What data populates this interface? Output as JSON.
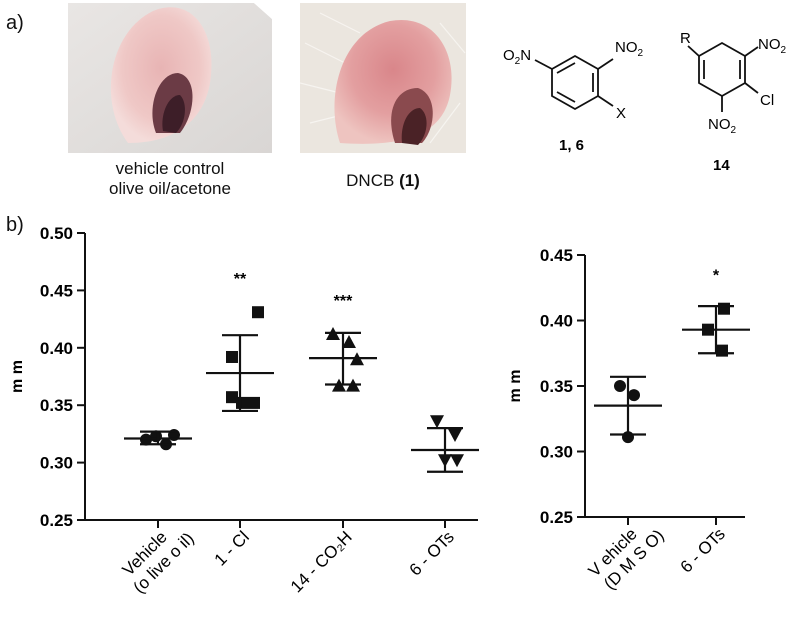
{
  "panel_a": {
    "label": "a)",
    "photo1": {
      "caption_line1": "vehicle control",
      "caption_line2": "olive oil/acetone"
    },
    "photo2": {
      "caption_text": "DNCB ",
      "caption_bold": "(1)"
    },
    "struct1": {
      "label": "1, 6",
      "sub_left": "O2N",
      "sub_right": "NO2",
      "sub_bottom": "X"
    },
    "struct2": {
      "label": "14",
      "sub_r": "R",
      "sub_top": "NO2",
      "sub_cl": "Cl",
      "sub_bottom": "NO2"
    }
  },
  "panel_b": {
    "label": "b)"
  },
  "chart_data": [
    {
      "type": "scatter",
      "ylabel": "m m",
      "ylim": [
        0.25,
        0.5
      ],
      "yticks": [
        "0.25",
        "0.30",
        "0.35",
        "0.40",
        "0.45",
        "0.50"
      ],
      "categories": [
        "Vehicle (olive oil)",
        "1 - Cl",
        "14 - CO2H",
        "6 - OTs"
      ],
      "tick_labels": [
        {
          "line1": "Vehicle",
          "line2": "(o live o il)"
        },
        {
          "line1": "1 - Cl",
          "line2": ""
        },
        {
          "line1": "14 - CO₂H",
          "line2": ""
        },
        {
          "line1": "6 - OTs",
          "line2": ""
        }
      ],
      "series": [
        {
          "marker": "circle",
          "points": [
            0.32,
            0.323,
            0.316,
            0.324
          ],
          "mean": 0.321,
          "sd_low": 0.316,
          "sd_high": 0.327,
          "significance": ""
        },
        {
          "marker": "square",
          "points": [
            0.392,
            0.431,
            0.357,
            0.352,
            0.352
          ],
          "mean": 0.378,
          "sd_low": 0.345,
          "sd_high": 0.411,
          "significance": "**"
        },
        {
          "marker": "triangle-up",
          "points": [
            0.412,
            0.405,
            0.39,
            0.367,
            0.367
          ],
          "mean": 0.391,
          "sd_low": 0.368,
          "sd_high": 0.413,
          "significance": "***"
        },
        {
          "marker": "triangle-down",
          "points": [
            0.336,
            0.324,
            0.302,
            0.302
          ],
          "mean": 0.311,
          "sd_low": 0.292,
          "sd_high": 0.33,
          "significance": ""
        }
      ]
    },
    {
      "type": "scatter",
      "ylabel": "m m",
      "ylim": [
        0.25,
        0.45
      ],
      "yticks": [
        "0.25",
        "0.30",
        "0.35",
        "0.40",
        "0.45"
      ],
      "categories": [
        "Vehicle (DMSO)",
        "6 - OTs"
      ],
      "tick_labels": [
        {
          "line1": "V ehicle",
          "line2": "(D M S O)"
        },
        {
          "line1": "6 - OTs",
          "line2": ""
        }
      ],
      "series": [
        {
          "marker": "circle",
          "points": [
            0.35,
            0.311,
            0.343
          ],
          "mean": 0.335,
          "sd_low": 0.313,
          "sd_high": 0.357,
          "significance": ""
        },
        {
          "marker": "square",
          "points": [
            0.409,
            0.393,
            0.377
          ],
          "mean": 0.393,
          "sd_low": 0.375,
          "sd_high": 0.411,
          "significance": "*"
        }
      ]
    }
  ]
}
